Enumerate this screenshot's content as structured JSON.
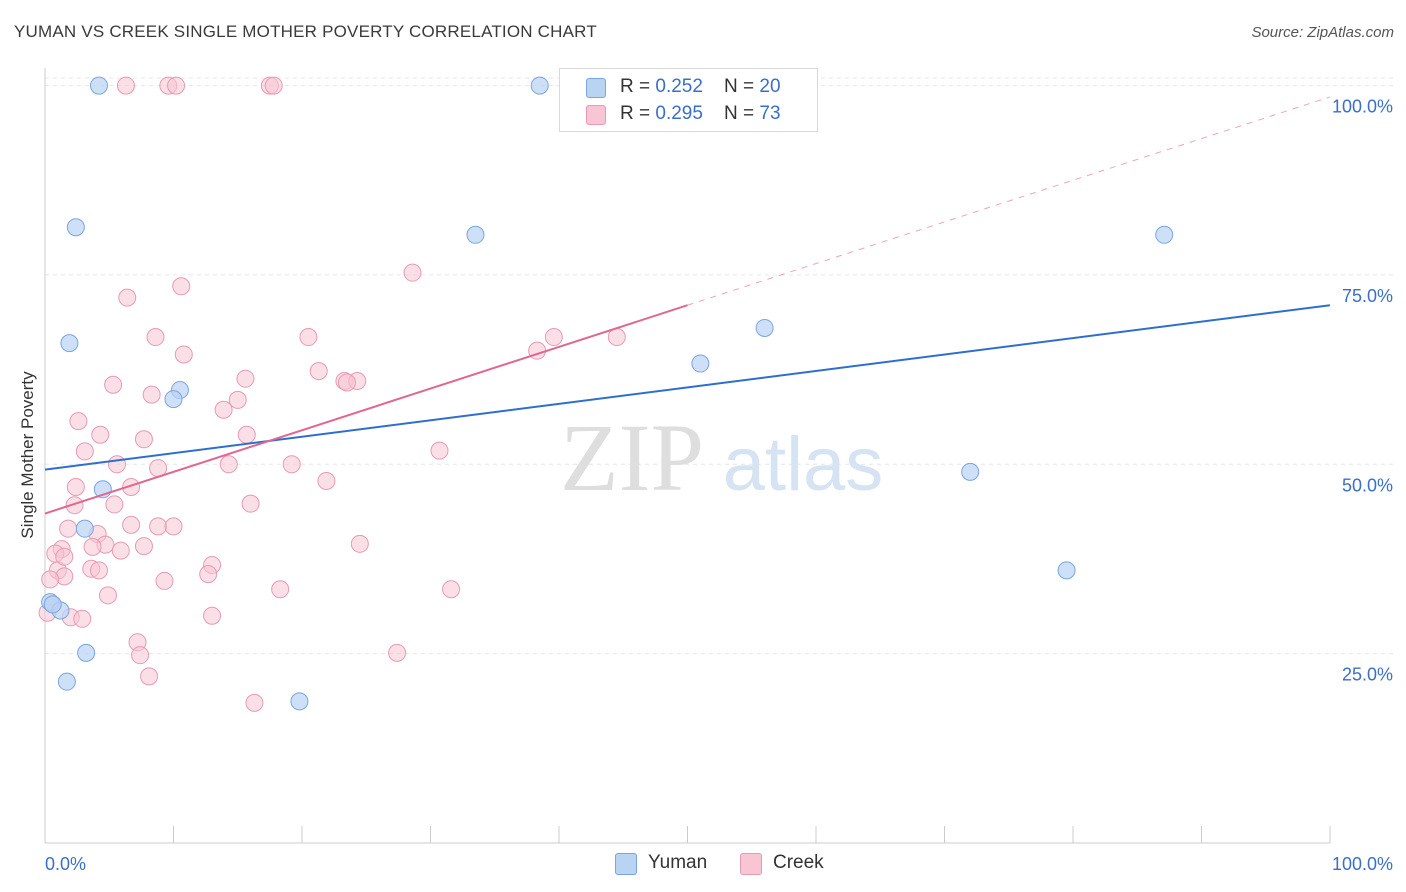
{
  "title": "YUMAN VS CREEK SINGLE MOTHER POVERTY CORRELATION CHART",
  "source": "Source: ZipAtlas.com",
  "watermark": {
    "zip": "ZIP",
    "atlas": "atlas"
  },
  "legend": {
    "yuman": {
      "r_label": "R = ",
      "r_value": "0.252",
      "n_label": "N = ",
      "n_value": "20"
    },
    "creek": {
      "r_label": "R = ",
      "r_value": "0.295",
      "n_label": "N = ",
      "n_value": "73"
    }
  },
  "bottom_legend": {
    "yuman": "Yuman",
    "creek": "Creek"
  },
  "colors": {
    "yuman_fill": "#b9d3f3",
    "yuman_stroke": "#7aa5e0",
    "yuman_line": "#2f6fcc",
    "creek_fill": "#f7c5d4",
    "creek_stroke": "#e89ab3",
    "creek_line": "#e06890",
    "grid": "#e6e6e6",
    "axis_text": "#3a6fc8"
  },
  "chart_data": {
    "type": "scatter",
    "title": "YUMAN VS CREEK SINGLE MOTHER POVERTY CORRELATION CHART",
    "xlabel": "",
    "ylabel": "Single Mother Poverty",
    "xlim": [
      0,
      100
    ],
    "ylim": [
      0,
      101
    ],
    "x_tick_labels": [
      "0.0%",
      "100.0%"
    ],
    "y_ticks": [
      {
        "value": 25,
        "label": "25.0%"
      },
      {
        "value": 50,
        "label": "50.0%"
      },
      {
        "value": 75,
        "label": "75.0%"
      },
      {
        "value": 100,
        "label": "100.0%"
      }
    ],
    "series": [
      {
        "name": "Yuman",
        "points": [
          [
            4.2,
            100
          ],
          [
            38.5,
            100
          ],
          [
            2.4,
            81.3
          ],
          [
            33.5,
            80.3
          ],
          [
            87.1,
            80.3
          ],
          [
            1.9,
            66.0
          ],
          [
            56.0,
            68.0
          ],
          [
            51.0,
            63.3
          ],
          [
            10.5,
            59.8
          ],
          [
            10.0,
            58.6
          ],
          [
            72.0,
            49.0
          ],
          [
            4.5,
            46.7
          ],
          [
            3.1,
            41.5
          ],
          [
            79.5,
            36.0
          ],
          [
            0.4,
            31.8
          ],
          [
            1.2,
            30.7
          ],
          [
            3.2,
            25.1
          ],
          [
            1.7,
            21.3
          ],
          [
            19.8,
            18.7
          ],
          [
            0.6,
            31.5
          ]
        ],
        "trend": {
          "x0": 0,
          "y0": 49.3,
          "x1": 100,
          "y1": 71.0
        }
      },
      {
        "name": "Creek",
        "points": [
          [
            6.3,
            100
          ],
          [
            9.6,
            100
          ],
          [
            10.2,
            100
          ],
          [
            17.5,
            100
          ],
          [
            17.8,
            100
          ],
          [
            28.6,
            75.3
          ],
          [
            10.6,
            73.5
          ],
          [
            6.4,
            72.0
          ],
          [
            8.6,
            66.8
          ],
          [
            20.5,
            66.8
          ],
          [
            39.6,
            66.8
          ],
          [
            44.5,
            66.8
          ],
          [
            38.3,
            65.0
          ],
          [
            10.8,
            64.5
          ],
          [
            21.3,
            62.3
          ],
          [
            15.6,
            61.3
          ],
          [
            23.3,
            61.0
          ],
          [
            24.3,
            61.0
          ],
          [
            23.5,
            60.8
          ],
          [
            5.3,
            60.5
          ],
          [
            8.3,
            59.2
          ],
          [
            15.0,
            58.5
          ],
          [
            13.9,
            57.2
          ],
          [
            2.6,
            55.7
          ],
          [
            4.3,
            53.9
          ],
          [
            15.7,
            53.9
          ],
          [
            7.7,
            53.3
          ],
          [
            3.1,
            51.7
          ],
          [
            30.7,
            51.8
          ],
          [
            19.2,
            50.0
          ],
          [
            14.3,
            50.0
          ],
          [
            5.6,
            50.0
          ],
          [
            8.8,
            49.5
          ],
          [
            21.9,
            47.8
          ],
          [
            6.7,
            47.0
          ],
          [
            2.4,
            47.0
          ],
          [
            2.3,
            44.6
          ],
          [
            16.0,
            44.8
          ],
          [
            5.4,
            44.7
          ],
          [
            1.8,
            41.5
          ],
          [
            6.7,
            42.0
          ],
          [
            8.8,
            41.8
          ],
          [
            10.0,
            41.8
          ],
          [
            24.5,
            39.5
          ],
          [
            4.1,
            40.8
          ],
          [
            1.3,
            38.8
          ],
          [
            4.7,
            39.4
          ],
          [
            7.7,
            39.2
          ],
          [
            3.7,
            39.1
          ],
          [
            5.9,
            38.6
          ],
          [
            0.8,
            38.2
          ],
          [
            13.0,
            36.7
          ],
          [
            3.6,
            36.2
          ],
          [
            4.2,
            36.0
          ],
          [
            1.0,
            36.0
          ],
          [
            12.7,
            35.5
          ],
          [
            1.5,
            35.2
          ],
          [
            0.4,
            34.8
          ],
          [
            9.3,
            34.6
          ],
          [
            18.3,
            33.5
          ],
          [
            31.6,
            33.5
          ],
          [
            4.9,
            32.7
          ],
          [
            0.6,
            31.5
          ],
          [
            0.2,
            30.4
          ],
          [
            13.0,
            30.0
          ],
          [
            2.0,
            29.8
          ],
          [
            2.9,
            29.6
          ],
          [
            7.2,
            26.5
          ],
          [
            7.4,
            24.8
          ],
          [
            27.4,
            25.1
          ],
          [
            8.1,
            22.0
          ],
          [
            16.3,
            18.5
          ],
          [
            1.5,
            37.8
          ]
        ],
        "trend": {
          "x0": 0,
          "y0": 43.5,
          "x1": 50,
          "y1": 71.0
        },
        "trend_extension": {
          "x0": 50,
          "y0": 71.0,
          "x1": 100,
          "y1": 98.5
        }
      }
    ]
  }
}
